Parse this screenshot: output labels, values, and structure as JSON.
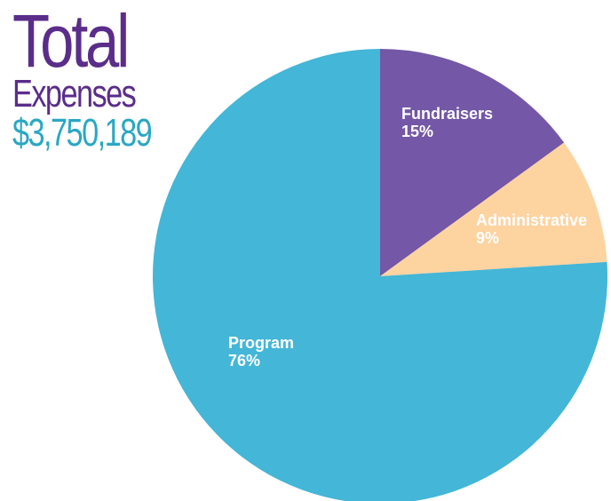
{
  "header": {
    "title": "Total",
    "subtitle": "Expenses",
    "total": "$3,750,189"
  },
  "colors": {
    "title": "#5b2d8a",
    "total": "#2aa7c4",
    "label_light": "#ffffff",
    "label_dark": "#ffffff"
  },
  "chart_data": {
    "type": "pie",
    "slices": [
      {
        "label": "Fundraisers",
        "pct_text": "15%",
        "value": 15,
        "color": "#7457a6"
      },
      {
        "label": "Administrative",
        "pct_text": "9%",
        "value": 9,
        "color": "#fdd3a0"
      },
      {
        "label": "Program",
        "pct_text": "76%",
        "value": 76,
        "color": "#44b6d7"
      }
    ],
    "start_angle_deg": 0,
    "direction": "clockwise"
  }
}
